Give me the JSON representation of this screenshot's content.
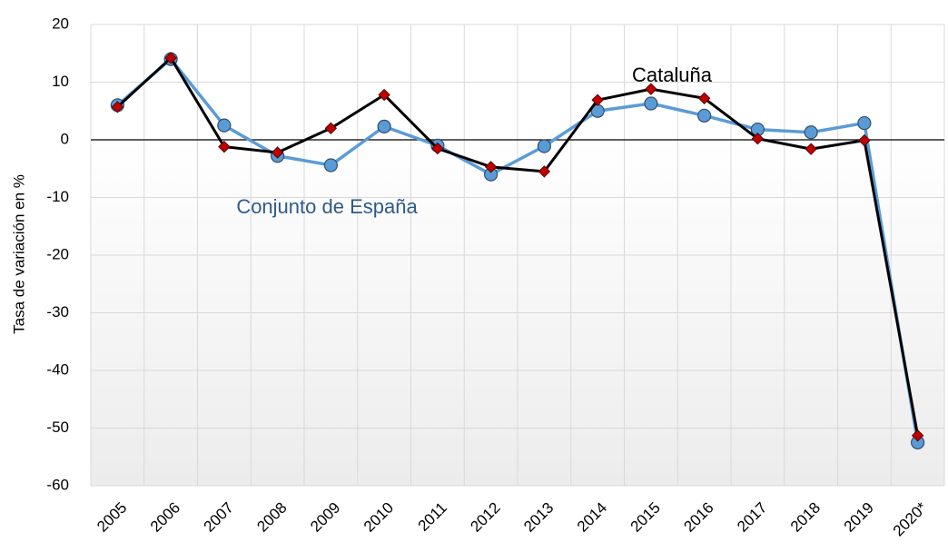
{
  "chart_data": {
    "type": "line",
    "y_label": "Tasa de variación en %",
    "categories": [
      "2005",
      "2006",
      "2007",
      "2008",
      "2009",
      "2010",
      "2011",
      "2012",
      "2013",
      "2014",
      "2015",
      "2016",
      "2017",
      "2018",
      "2019",
      "2020*"
    ],
    "series": [
      {
        "name": "Conjunto de España",
        "color": "#5b9bd5",
        "marker": "circle",
        "values": [
          6,
          14,
          2.5,
          -2.8,
          -4.4,
          2.3,
          -1,
          -6,
          -1.1,
          5,
          6.3,
          4.2,
          1.8,
          1.3,
          2.9,
          -52.5
        ]
      },
      {
        "name": "Cataluña",
        "color": "#000000",
        "marker": "diamond",
        "marker_color": "#c00000",
        "values": [
          5.7,
          14.2,
          -1.2,
          -2.2,
          2,
          7.8,
          -1.5,
          -4.7,
          -5.5,
          6.9,
          8.8,
          7.2,
          0.2,
          -1.6,
          -0.1,
          -51.3
        ]
      }
    ],
    "ylim": [
      -60,
      20
    ],
    "yticks": [
      -60,
      -50,
      -40,
      -30,
      -20,
      -10,
      0,
      10,
      20
    ],
    "grid": true
  }
}
